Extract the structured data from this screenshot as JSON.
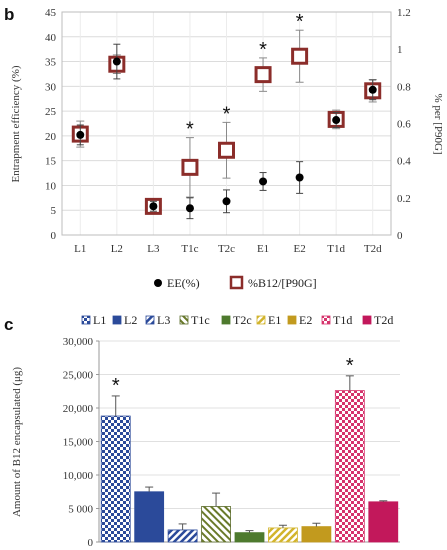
{
  "chart_data": [
    {
      "panel": "b",
      "type": "scatter",
      "categories": [
        "L1",
        "L2",
        "L3",
        "T1c",
        "T2c",
        "E1",
        "E2",
        "T1d",
        "T2d"
      ],
      "ylabel": "Entrapment efficiency (%)",
      "y2label": "% per [P90G]",
      "ylim": [
        0,
        45
      ],
      "yticks": [
        "0",
        "5",
        "10",
        "15",
        "20",
        "25",
        "30",
        "35",
        "40",
        "45"
      ],
      "y2lim": [
        0,
        1.2
      ],
      "y2ticks": [
        "0",
        "0.2",
        "0.4",
        "0.6",
        "0.8",
        "1",
        "1.2"
      ],
      "grid": true,
      "series": [
        {
          "name": "EE(%)",
          "axis": "left",
          "marker": "circle",
          "color": "#000000",
          "values": [
            20.2,
            35.0,
            5.8,
            5.4,
            6.8,
            10.8,
            11.6,
            23.2,
            29.3
          ],
          "errors": [
            2.0,
            3.5,
            1.0,
            2.1,
            2.3,
            1.8,
            3.2,
            1.5,
            2.0
          ]
        },
        {
          "name": "%B12/[P90G]",
          "axis": "right",
          "marker": "square",
          "color": "#8b2d2a",
          "values": [
            0.543,
            0.919,
            0.154,
            0.364,
            0.456,
            0.863,
            0.962,
            0.622,
            0.776
          ],
          "errors": [
            0.07,
            0.05,
            0.02,
            0.16,
            0.15,
            0.09,
            0.14,
            0.05,
            0.06
          ]
        }
      ],
      "significant": [
        "T1c",
        "T2c",
        "E1",
        "E2"
      ],
      "legend": "bottom"
    },
    {
      "panel": "c",
      "type": "bar",
      "categories": [
        "L1",
        "L2",
        "L3",
        "T1c",
        "T2c",
        "E1",
        "E2",
        "T1d",
        "T2d"
      ],
      "ylabel": "Amount of B12 encapsulated (μg)",
      "ylim": [
        0,
        30000
      ],
      "yticks": [
        "0",
        "5 000",
        "10,000",
        "15,000",
        "20,000",
        "25,000",
        "30,000"
      ],
      "grid": true,
      "series": [
        {
          "values": [
            18800,
            7500,
            1800,
            5300,
            1400,
            2100,
            2300,
            22600,
            6000
          ],
          "errors": [
            3000,
            700,
            900,
            2000,
            300,
            400,
            500,
            2200,
            150
          ]
        }
      ],
      "colors": [
        "#2b4a9a",
        "#2b4a9a",
        "#2b4a9a",
        "#5a6b2a",
        "#4e7a2e",
        "#d2b42c",
        "#c29a1e",
        "#d6336c",
        "#c2185b"
      ],
      "patterns": [
        "check",
        "solid",
        "diag",
        "diag",
        "solid",
        "diag",
        "solid",
        "check",
        "solid"
      ],
      "significant": [
        "L1",
        "T1d"
      ],
      "legend": "top"
    }
  ]
}
